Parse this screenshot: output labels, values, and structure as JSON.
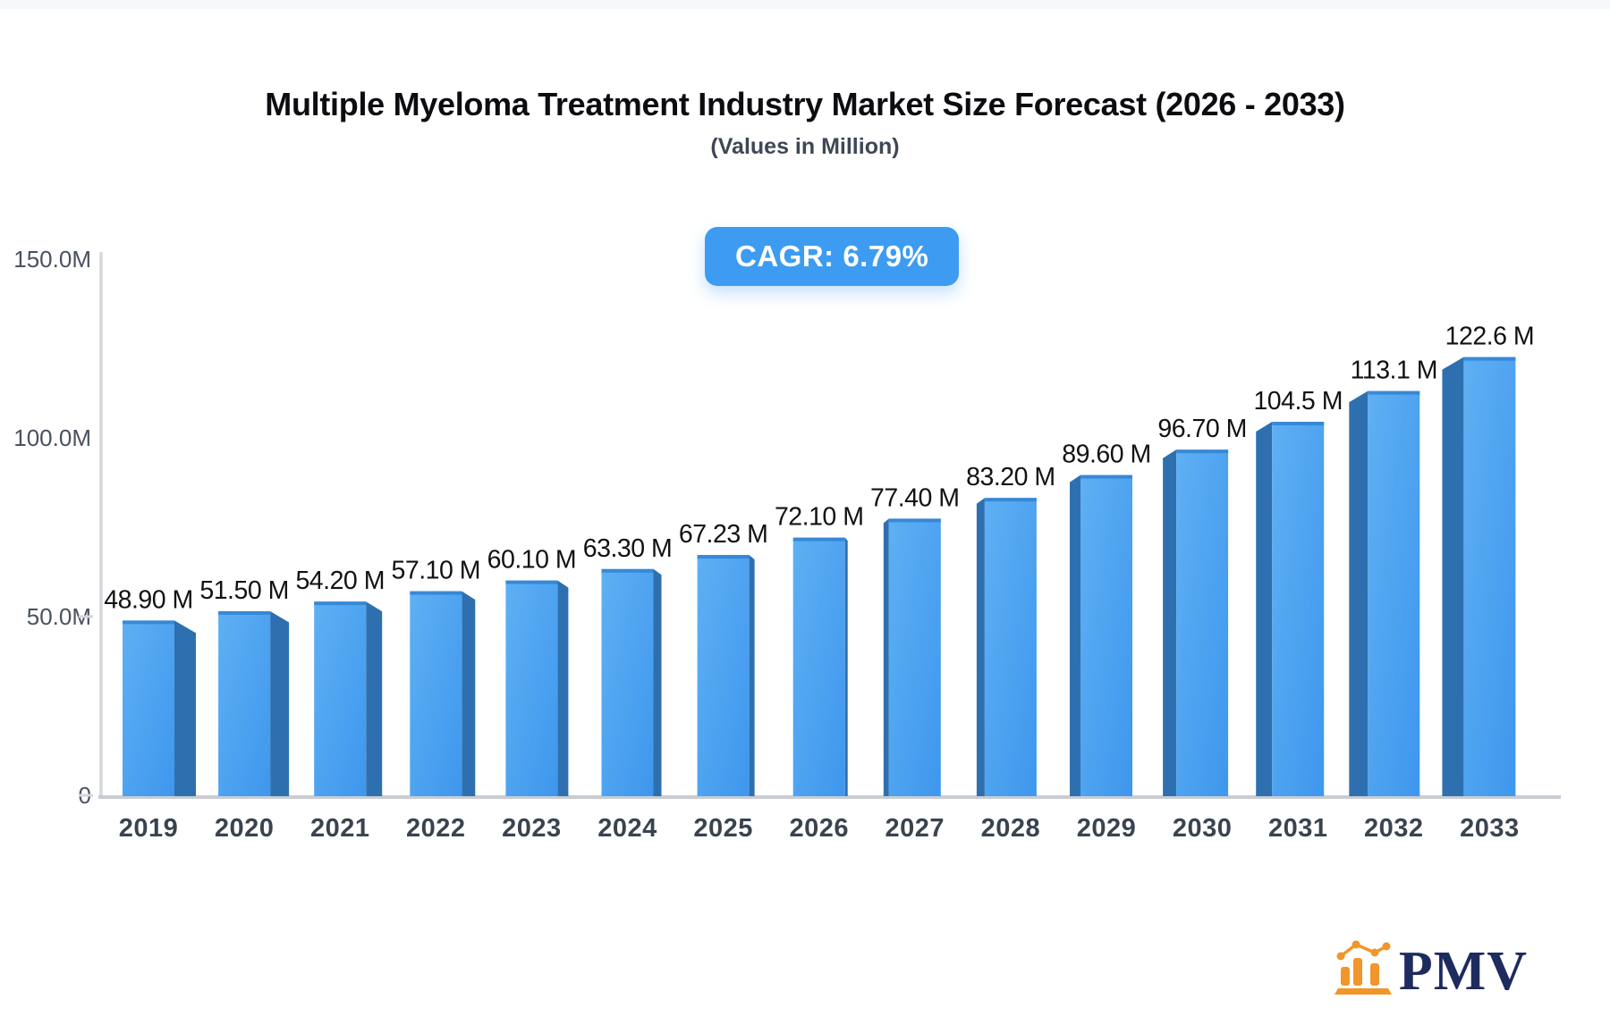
{
  "header": {
    "title": "Multiple Myeloma Treatment Industry Market Size Forecast (2026 - 2033)",
    "subtitle": "(Values in Million)",
    "badge_label": "CAGR: 6.79%"
  },
  "chart_data": {
    "type": "bar",
    "title": "Multiple Myeloma Treatment Industry Market Size Forecast (2026 - 2033)",
    "subtitle": "(Values in Million)",
    "annotation": "CAGR: 6.79%",
    "categories": [
      "2019",
      "2020",
      "2021",
      "2022",
      "2023",
      "2024",
      "2025",
      "2026",
      "2027",
      "2028",
      "2029",
      "2030",
      "2031",
      "2032",
      "2033"
    ],
    "values": [
      48.9,
      51.5,
      54.2,
      57.1,
      60.1,
      63.3,
      67.23,
      72.1,
      77.4,
      83.2,
      89.6,
      96.7,
      104.5,
      113.1,
      122.6
    ],
    "value_labels": [
      "48.90 M",
      "51.50 M",
      "54.20 M",
      "57.10 M",
      "60.10 M",
      "63.30 M",
      "67.23 M",
      "72.10 M",
      "77.40 M",
      "83.20 M",
      "89.60 M",
      "96.70 M",
      "104.5 M",
      "113.1 M",
      "122.6 M"
    ],
    "xlabel": "",
    "ylabel": "",
    "ylim": [
      0,
      150
    ],
    "y_ticks": [
      {
        "value": 150,
        "label": "150.0M",
        "dash": false
      },
      {
        "value": 100,
        "label": "100.0M",
        "dash": false
      },
      {
        "value": 50,
        "label": "50.0M",
        "dash": true
      },
      {
        "value": 0,
        "label": "0",
        "dash": true
      }
    ],
    "grid": false,
    "legend": false,
    "style": "3d-perspective-bars"
  },
  "colors": {
    "bar_front_light": "#5fb0f3",
    "bar_front_dark": "#3e97ee",
    "bar_side": "#2e70af",
    "bar_top_edge": "#3282d2",
    "axis_line": "#d4d7dc",
    "baseline": "#c9cdd3",
    "y_tick_text": "#49525f",
    "year_text": "#3a4350",
    "value_text": "#121212",
    "badge_bg": "#3d9cf1",
    "badge_text": "#ffffff",
    "logo_orange": "#f0962a",
    "logo_navy": "#1d2b5e"
  },
  "logo": {
    "text": "PMV"
  }
}
